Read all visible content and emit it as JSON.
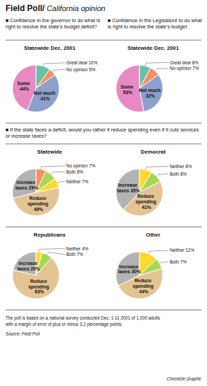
{
  "title": "Field Poll/",
  "subtitle": "California opinion",
  "annotations": [
    "■  Confidence in the governor to do what is right to resolve the state’s budget deficit?",
    "■  Confidence in the Legislature to do what is right to resolve the state’s budget",
    "■ If the state faces a deficit, would you rather it reduce spending even if it cuts services or increase taxes?",
    "The poll is based on a national survey conducted Dec. 1-11 2001  of 1,000 adults",
    "with a margin of error of plus or minus 3.2 percentage points.",
    "Source: Field Poll",
    "Chronicle Graphic"
  ],
  "chart_data": [
    {
      "type": "pie",
      "title": "Statewide Dec. 2001",
      "categories": [
        "Great deal",
        "No opinion",
        "Not much",
        "Some"
      ],
      "values": [
        10,
        5,
        41,
        44
      ],
      "value_labels": [
        "Great deal 10%",
        "No opinion 5%",
        "Not much 41%",
        "Some 44%"
      ],
      "data_labels": true
    },
    {
      "type": "pie",
      "title": "Statewide Dec. 2001",
      "categories": [
        "Great deal",
        "No opinion",
        "Not much",
        "Some"
      ],
      "values": [
        8,
        7,
        32,
        53
      ],
      "value_labels": [
        "Great deal 8%",
        "No opinion 7%",
        "Not much 32%",
        "Some 53%"
      ],
      "data_labels": true
    },
    {
      "type": "pie",
      "title": "Statewide",
      "categories": [
        "No opinion",
        "Both",
        "Neither",
        "Reduce spending",
        "Increase taxes"
      ],
      "values": [
        7,
        8,
        7,
        49,
        29
      ],
      "value_labels": [
        "No opinion 7%",
        "Both 8%",
        "Neither 7%",
        "Reduce spending 49%",
        "Increase taxes 29%"
      ],
      "data_labels": true
    },
    {
      "type": "pie",
      "title": "Democrat",
      "categories": [
        "Neither",
        "Both",
        "Reduce spending",
        "Increase taxes"
      ],
      "values": [
        8,
        8,
        41,
        35
      ],
      "value_labels": [
        "Neither 8%",
        "Both 8%",
        "Reduce spending 41%",
        "Increase taxes 35%"
      ],
      "data_labels": true
    },
    {
      "type": "pie",
      "title": "Republicans",
      "categories": [
        "Neither",
        "Both",
        "Reduce spending",
        "Increase taxes"
      ],
      "values": [
        4,
        7,
        63,
        20
      ],
      "value_labels": [
        "Neither 4%",
        "Both 7%",
        "Reduce spending 63%",
        "Increase taxes 20%"
      ],
      "data_labels": true
    },
    {
      "type": "pie",
      "title": "Other",
      "categories": [
        "Neither",
        "Both",
        "Reduce spending",
        "Increase taxes"
      ],
      "values": [
        12,
        7,
        44,
        30
      ],
      "value_labels": [
        "Neither 12%",
        "Both 7%",
        "Reduce spending 44%",
        "Increase taxes 30%"
      ],
      "data_labels": true
    }
  ]
}
